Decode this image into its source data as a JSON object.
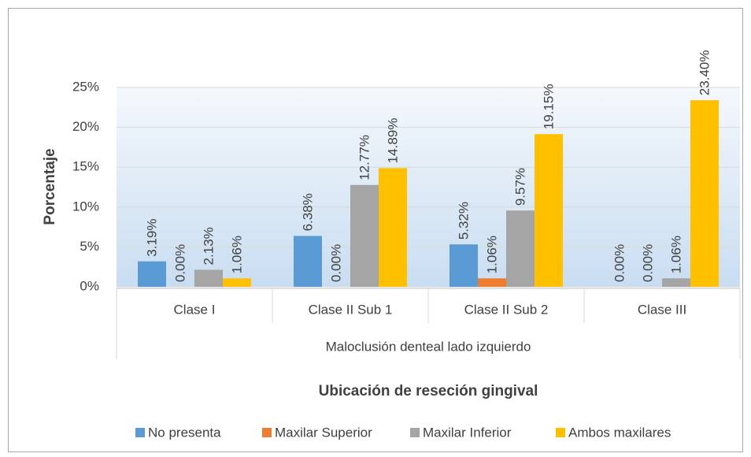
{
  "chart_data": {
    "type": "bar",
    "y_label": "Porcentaje",
    "x_group_label": "Maloclusión denteal lado izquierdo",
    "x_label": "Ubicación de reseción gingival",
    "categories": [
      "Clase I",
      "Clase II Sub 1",
      "Clase II Sub 2",
      "Clase III"
    ],
    "series": [
      {
        "name": "No presenta",
        "color": "#5b9bd5",
        "values": [
          3.19,
          6.38,
          5.32,
          0
        ],
        "value_labels": [
          "3.19%",
          "6.38%",
          "5.32%",
          "0.00%"
        ]
      },
      {
        "name": "Maxilar Superior",
        "color": "#ed7d31",
        "values": [
          0,
          0,
          1.06,
          0
        ],
        "value_labels": [
          "0.00%",
          "0.00%",
          "1.06%",
          "0.00%"
        ]
      },
      {
        "name": "Maxilar Inferior",
        "color": "#a5a5a5",
        "values": [
          2.13,
          12.77,
          9.57,
          1.06
        ],
        "value_labels": [
          "2.13%",
          "12.77%",
          "9.57%",
          "1.06%"
        ]
      },
      {
        "name": "Ambos maxilares",
        "color": "#ffc000",
        "values": [
          1.06,
          14.89,
          19.15,
          23.4
        ],
        "value_labels": [
          "1.06%",
          "14.89%",
          "19.15%",
          "23.40%"
        ]
      }
    ],
    "ylim": [
      0,
      25
    ],
    "yticks": [
      {
        "value": 0,
        "label": "0%"
      },
      {
        "value": 5,
        "label": "5%"
      },
      {
        "value": 10,
        "label": "10%"
      },
      {
        "value": 15,
        "label": "15%"
      },
      {
        "value": 20,
        "label": "20%"
      },
      {
        "value": 25,
        "label": "25%"
      }
    ],
    "grid": true,
    "legend": "bottom"
  }
}
